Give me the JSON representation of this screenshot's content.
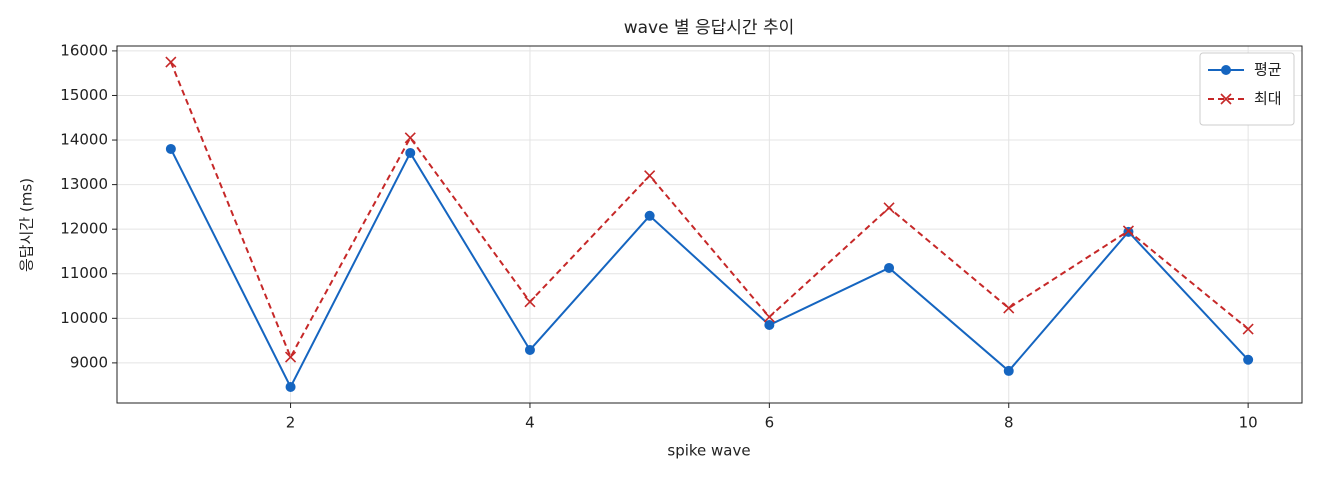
{
  "chart_data": {
    "type": "line",
    "title": "wave 별 응답시간 추이",
    "x_label": "spike wave",
    "y_label": "응답시간 (ms)",
    "x": [
      1,
      2,
      3,
      4,
      5,
      6,
      7,
      8,
      9,
      10
    ],
    "series": [
      {
        "name": "평균",
        "color": "#1565c0",
        "marker": "circle",
        "dash": false,
        "values": [
          13800,
          8460,
          13710,
          9290,
          12300,
          9850,
          11130,
          8820,
          11940,
          9070
        ]
      },
      {
        "name": "최대",
        "color": "#c62828",
        "marker": "x",
        "dash": true,
        "values": [
          15750,
          9130,
          14050,
          10370,
          13200,
          10030,
          12480,
          10230,
          11960,
          9760
        ]
      }
    ],
    "xlim": [
      0.55,
      10.45
    ],
    "xticks": [
      2,
      4,
      6,
      8,
      10
    ],
    "ylim": [
      8100,
      16110
    ],
    "yticks": [
      9000,
      10000,
      11000,
      12000,
      13000,
      14000,
      15000,
      16000
    ],
    "grid": true,
    "legend": "upper right"
  }
}
